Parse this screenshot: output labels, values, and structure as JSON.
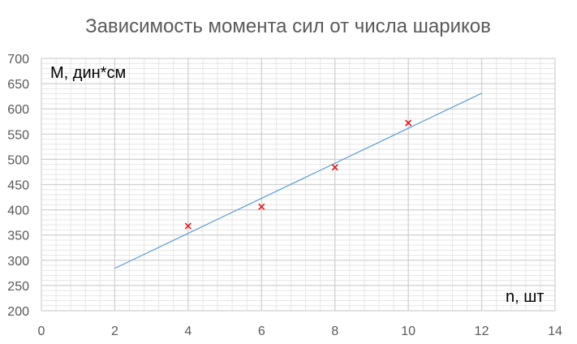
{
  "chart_data": {
    "type": "scatter",
    "title": "Зависимость момента сил от числа шариков",
    "xlabel": "n, шт",
    "ylabel": "М, дин*см",
    "xlim": [
      0,
      14
    ],
    "ylim": [
      200,
      700
    ],
    "x_ticks": [
      0,
      2,
      4,
      6,
      8,
      10,
      12,
      14
    ],
    "y_ticks": [
      200,
      250,
      300,
      350,
      400,
      450,
      500,
      550,
      600,
      650,
      700
    ],
    "x_tick_labels": [
      "0",
      "2",
      "4",
      "6",
      "8",
      "10",
      "12",
      "14"
    ],
    "y_tick_labels": [
      "200",
      "250",
      "300",
      "350",
      "400",
      "450",
      "500",
      "550",
      "600",
      "650",
      "700"
    ],
    "grid": true,
    "series": [
      {
        "values": [
          {
            "x": 4,
            "y": 368
          },
          {
            "x": 6,
            "y": 406
          },
          {
            "x": 8,
            "y": 484
          },
          {
            "x": 10,
            "y": 572
          }
        ],
        "marker": "x",
        "color": "#e31a1c"
      }
    ],
    "trendline": {
      "type": "linear",
      "from": {
        "x": 2,
        "y": 284
      },
      "to": {
        "x": 12,
        "y": 631
      },
      "color": "#5b9bd5"
    }
  }
}
